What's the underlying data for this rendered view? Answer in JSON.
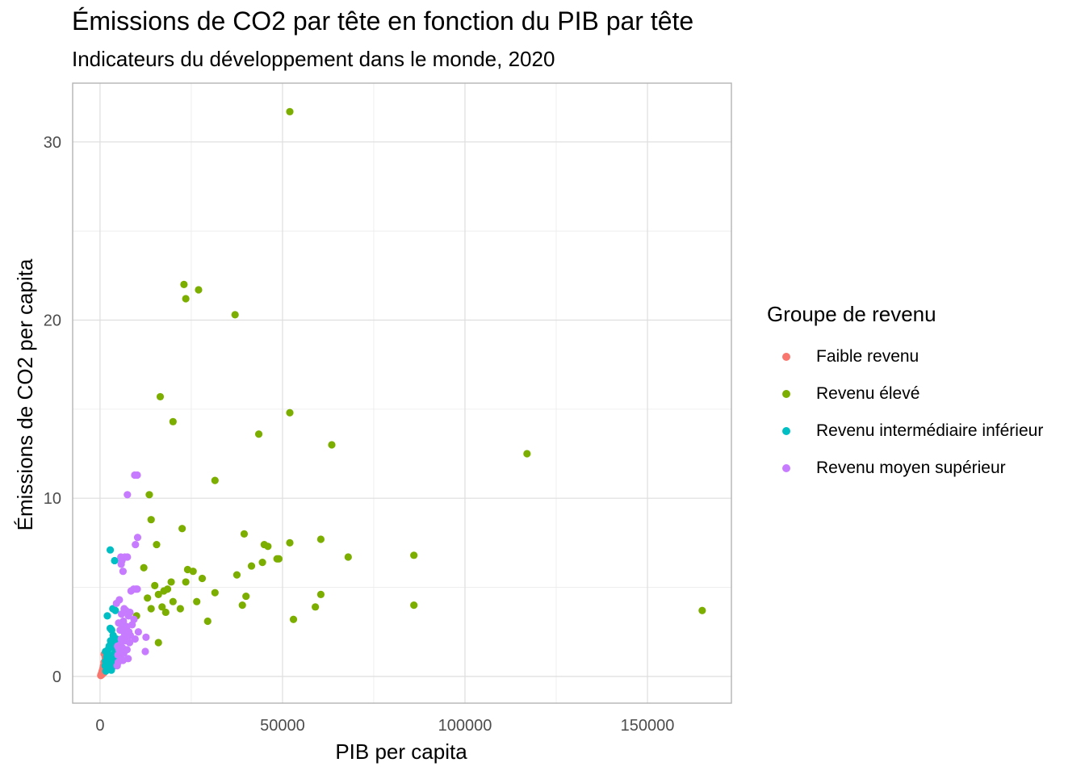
{
  "title": "Émissions de CO2 par tête en fonction du PIB par tête",
  "subtitle": "Indicateurs du développement dans le monde, 2020",
  "legend": {
    "title": "Groupe de revenu",
    "items": [
      {
        "label": "Faible revenu",
        "color": "#F8766D"
      },
      {
        "label": "Revenu élevé",
        "color": "#7CAE00"
      },
      {
        "label": "Revenu intermédiaire inférieur",
        "color": "#00BFC4"
      },
      {
        "label": "Revenu moyen supérieur",
        "color": "#C77CFF"
      }
    ]
  },
  "chart_data": {
    "type": "scatter",
    "title": "Émissions de CO2 par tête en fonction du PIB par tête",
    "subtitle": "Indicateurs du développement dans le monde, 2020",
    "xlabel": "PIB per capita",
    "ylabel": "Émissions de CO2 per capita",
    "xlim": [
      -7500,
      173000
    ],
    "ylim": [
      -1.5,
      33.3
    ],
    "x_ticks": [
      0,
      50000,
      100000,
      150000
    ],
    "x_tick_labels": [
      "0",
      "50000",
      "100000",
      "150000"
    ],
    "y_ticks": [
      0,
      10,
      20,
      30
    ],
    "y_tick_labels": [
      "0",
      "10",
      "20",
      "30"
    ],
    "grid": true,
    "legend_position": "right",
    "series": [
      {
        "name": "Faible revenu",
        "color": "#F8766D",
        "points": [
          [
            200,
            0.05
          ],
          [
            300,
            0.1
          ],
          [
            400,
            0.15
          ],
          [
            450,
            0.2
          ],
          [
            500,
            0.1
          ],
          [
            550,
            0.25
          ],
          [
            600,
            0.3
          ],
          [
            650,
            0.15
          ],
          [
            700,
            0.35
          ],
          [
            750,
            0.2
          ],
          [
            800,
            0.4
          ],
          [
            850,
            0.5
          ],
          [
            900,
            0.3
          ],
          [
            950,
            0.6
          ],
          [
            1000,
            0.45
          ],
          [
            1050,
            0.2
          ],
          [
            1100,
            0.8
          ],
          [
            1150,
            1.25
          ],
          [
            1200,
            0.55
          ],
          [
            1300,
            0.35
          ],
          [
            1400,
            1.05
          ],
          [
            1500,
            0.7
          ]
        ]
      },
      {
        "name": "Revenu élevé",
        "color": "#7CAE00",
        "points": [
          [
            52000,
            31.7
          ],
          [
            23000,
            22.0
          ],
          [
            27000,
            21.7
          ],
          [
            23500,
            21.2
          ],
          [
            37000,
            20.3
          ],
          [
            16500,
            15.7
          ],
          [
            52000,
            14.8
          ],
          [
            20000,
            14.3
          ],
          [
            43500,
            13.6
          ],
          [
            63500,
            13.0
          ],
          [
            117000,
            12.5
          ],
          [
            31500,
            11.0
          ],
          [
            13500,
            10.2
          ],
          [
            14000,
            8.8
          ],
          [
            22500,
            8.3
          ],
          [
            39500,
            8.0
          ],
          [
            60500,
            7.7
          ],
          [
            52000,
            7.5
          ],
          [
            45000,
            7.4
          ],
          [
            46000,
            7.3
          ],
          [
            15500,
            7.4
          ],
          [
            68000,
            6.7
          ],
          [
            86000,
            6.8
          ],
          [
            48500,
            6.6
          ],
          [
            49000,
            6.6
          ],
          [
            44500,
            6.4
          ],
          [
            41500,
            6.2
          ],
          [
            12000,
            6.1
          ],
          [
            24000,
            6.0
          ],
          [
            25500,
            5.9
          ],
          [
            37500,
            5.7
          ],
          [
            28000,
            5.5
          ],
          [
            23500,
            5.3
          ],
          [
            19500,
            5.3
          ],
          [
            15000,
            5.1
          ],
          [
            18500,
            4.9
          ],
          [
            17500,
            4.8
          ],
          [
            16000,
            4.6
          ],
          [
            60500,
            4.6
          ],
          [
            40000,
            4.5
          ],
          [
            31500,
            4.7
          ],
          [
            13000,
            4.4
          ],
          [
            26500,
            4.2
          ],
          [
            20000,
            4.2
          ],
          [
            86000,
            4.0
          ],
          [
            39000,
            4.0
          ],
          [
            59000,
            3.9
          ],
          [
            14000,
            3.8
          ],
          [
            17000,
            3.9
          ],
          [
            22000,
            3.8
          ],
          [
            18000,
            3.6
          ],
          [
            165000,
            3.7
          ],
          [
            10000,
            3.4
          ],
          [
            29500,
            3.1
          ],
          [
            53000,
            3.2
          ],
          [
            16000,
            1.9
          ]
        ]
      },
      {
        "name": "Revenu intermédiaire inférieur",
        "color": "#00BFC4",
        "points": [
          [
            2800,
            7.1
          ],
          [
            4000,
            6.5
          ],
          [
            3500,
            3.8
          ],
          [
            4200,
            3.7
          ],
          [
            2000,
            3.4
          ],
          [
            2800,
            2.7
          ],
          [
            3200,
            2.6
          ],
          [
            3600,
            2.3
          ],
          [
            4500,
            2.1
          ],
          [
            3000,
            1.9
          ],
          [
            2500,
            1.7
          ],
          [
            3800,
            1.6
          ],
          [
            2200,
            1.5
          ],
          [
            1500,
            1.4
          ],
          [
            4000,
            1.3
          ],
          [
            2600,
            1.2
          ],
          [
            1800,
            1.1
          ],
          [
            3000,
            1.0
          ],
          [
            3300,
            0.95
          ],
          [
            2100,
            0.9
          ],
          [
            1500,
            0.85
          ],
          [
            4300,
            0.8
          ],
          [
            2400,
            0.75
          ],
          [
            1700,
            0.7
          ],
          [
            2800,
            0.6
          ],
          [
            3500,
            0.55
          ],
          [
            2000,
            0.5
          ],
          [
            1900,
            0.45
          ],
          [
            2600,
            0.4
          ],
          [
            3100,
            0.35
          ],
          [
            1600,
            0.3
          ],
          [
            3800,
            1.8
          ],
          [
            4500,
            1.0
          ],
          [
            2900,
            2.0
          ],
          [
            1400,
            0.6
          ]
        ]
      },
      {
        "name": "Revenu moyen supérieur",
        "color": "#C77CFF",
        "points": [
          [
            9500,
            11.3
          ],
          [
            10200,
            11.3
          ],
          [
            7500,
            10.2
          ],
          [
            10300,
            7.8
          ],
          [
            9700,
            7.4
          ],
          [
            5700,
            6.7
          ],
          [
            6800,
            6.7
          ],
          [
            7500,
            6.7
          ],
          [
            6000,
            6.5
          ],
          [
            5800,
            6.3
          ],
          [
            6300,
            5.9
          ],
          [
            9200,
            4.9
          ],
          [
            9800,
            4.9
          ],
          [
            10200,
            4.9
          ],
          [
            8500,
            4.8
          ],
          [
            5300,
            4.3
          ],
          [
            4500,
            4.1
          ],
          [
            6600,
            3.8
          ],
          [
            7100,
            3.7
          ],
          [
            8200,
            3.6
          ],
          [
            5900,
            3.5
          ],
          [
            7800,
            3.4
          ],
          [
            9300,
            3.2
          ],
          [
            6400,
            3.1
          ],
          [
            5100,
            3.0
          ],
          [
            8800,
            2.9
          ],
          [
            7300,
            2.8
          ],
          [
            6100,
            2.7
          ],
          [
            5500,
            2.6
          ],
          [
            7900,
            2.5
          ],
          [
            10500,
            2.5
          ],
          [
            6700,
            2.4
          ],
          [
            8300,
            2.3
          ],
          [
            12600,
            2.2
          ],
          [
            7000,
            2.2
          ],
          [
            9600,
            2.1
          ],
          [
            5800,
            2.1
          ],
          [
            6900,
            2.0
          ],
          [
            8100,
            1.9
          ],
          [
            5600,
            1.8
          ],
          [
            4800,
            1.7
          ],
          [
            6200,
            1.6
          ],
          [
            7400,
            1.5
          ],
          [
            5200,
            1.5
          ],
          [
            12400,
            1.4
          ],
          [
            6500,
            1.3
          ],
          [
            4900,
            1.2
          ],
          [
            5700,
            1.1
          ],
          [
            7700,
            1.0
          ],
          [
            5000,
            0.8
          ],
          [
            4700,
            0.6
          ],
          [
            6300,
            0.9
          ]
        ]
      }
    ]
  }
}
